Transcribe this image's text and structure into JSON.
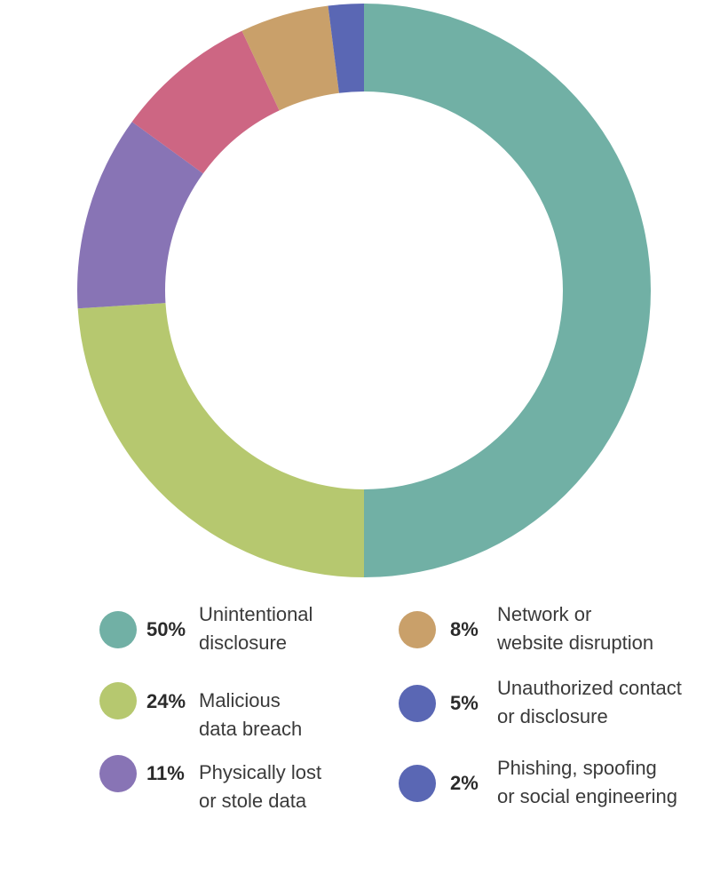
{
  "chart_data": {
    "type": "pie",
    "style": "donut",
    "slices": [
      {
        "label_line1": "Unintentional",
        "label_line2": "disclosure",
        "value": 50,
        "pct_text": "50%",
        "color": "#71B0A5"
      },
      {
        "label_line1": "Malicious",
        "label_line2": "data breach",
        "value": 24,
        "pct_text": "24%",
        "color": "#B6C86F"
      },
      {
        "label_line1": "Physically lost",
        "label_line2": "or stole data",
        "value": 11,
        "pct_text": "11%",
        "color": "#8874B5"
      },
      {
        "label_line1": "Network or",
        "label_line2": "website disruption",
        "value": 8,
        "pct_text": "8%",
        "color": "#CD6683"
      },
      {
        "label_line1": "Unauthorized contact",
        "label_line2": "or disclosure",
        "value": 5,
        "pct_text": "5%",
        "color": "#C9A06A"
      },
      {
        "label_line1": "Phishing, spoofing",
        "label_line2": "or social engineering",
        "value": 2,
        "pct_text": "2%",
        "color": "#5A67B4"
      }
    ],
    "legend": {
      "items": [
        {
          "pct": "50%",
          "line1": "Unintentional",
          "line2": "disclosure",
          "color": "#71B0A5"
        },
        {
          "pct": "24%",
          "line1": "Malicious",
          "line2": "data breach",
          "color": "#B6C86F"
        },
        {
          "pct": "11%",
          "line1": "Physically lost",
          "line2": "or stole data",
          "color": "#8874B5"
        },
        {
          "pct": "8%",
          "line1": "Network or",
          "line2": "website disruption",
          "color": "#C9A06A"
        },
        {
          "pct": "5%",
          "line1": "Unauthorized contact",
          "line2": "or disclosure",
          "color": "#5A67B4"
        },
        {
          "pct": "2%",
          "line1": "Phishing, spoofing",
          "line2": "or social engineering",
          "color": "#5A67B4"
        }
      ]
    }
  }
}
